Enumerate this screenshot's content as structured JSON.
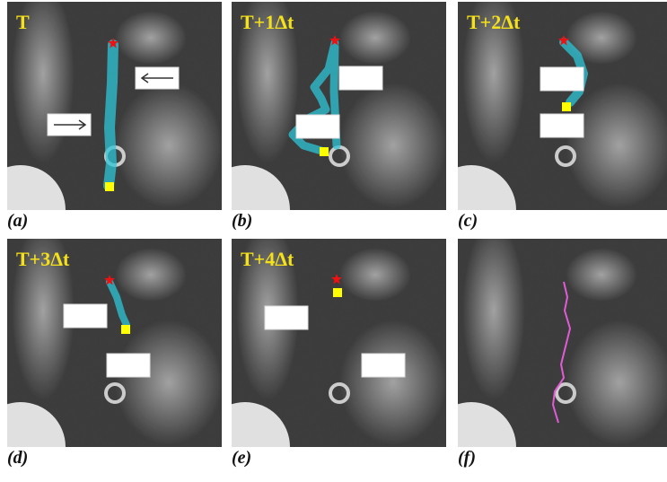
{
  "panels": [
    {
      "label": "T",
      "caption": "(a)"
    },
    {
      "label": "T+1Δt",
      "caption": "(b)"
    },
    {
      "label": "T+2Δt",
      "caption": "(c)"
    },
    {
      "label": "T+3Δt",
      "caption": "(d)"
    },
    {
      "label": "T+4Δt",
      "caption": "(e)"
    },
    {
      "caption": "(f)"
    }
  ]
}
